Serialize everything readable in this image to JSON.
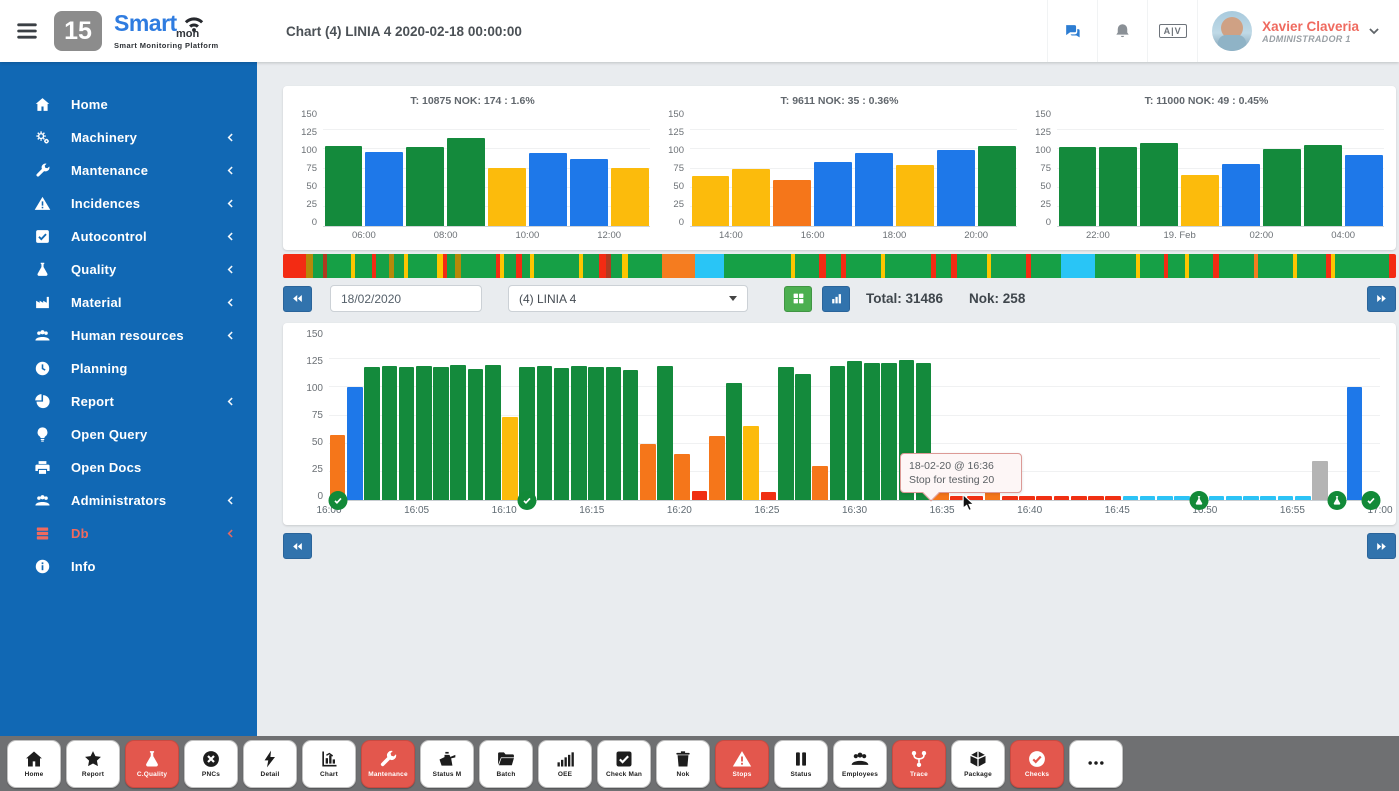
{
  "colors": {
    "green": "#148a3c",
    "blue": "#1e78e9",
    "yellow": "#fcbb0c",
    "orange": "#f5761a",
    "red": "#f03013",
    "cyan": "#2cc3f6",
    "gray": "#b4b4b4",
    "sidebar": "#1168b4",
    "accent_red": "#e3574d",
    "strip_green": "#16a046"
  },
  "header": {
    "title": "Chart (4) LINIA 4 2020-02-18 00:00:00",
    "logo_number": "15",
    "brand": {
      "name_top": "Smart",
      "name_sub": "mon",
      "tagline": "Smart Monitoring Platform"
    },
    "av_badge": "A|V",
    "user": {
      "name": "Xavier Claveria",
      "role": "ADMINISTRADOR 1"
    }
  },
  "sidebar": {
    "items": [
      {
        "label": "Home",
        "icon": "home",
        "expandable": false,
        "accent": false
      },
      {
        "label": "Machinery",
        "icon": "gears",
        "expandable": true,
        "accent": false
      },
      {
        "label": "Mantenance",
        "icon": "wrench",
        "expandable": true,
        "accent": false
      },
      {
        "label": "Incidences",
        "icon": "warning",
        "expandable": true,
        "accent": false
      },
      {
        "label": "Autocontrol",
        "icon": "check-square",
        "expandable": true,
        "accent": false
      },
      {
        "label": "Quality",
        "icon": "flask",
        "expandable": true,
        "accent": false
      },
      {
        "label": "Material",
        "icon": "factory",
        "expandable": true,
        "accent": false
      },
      {
        "label": "Human resources",
        "icon": "users",
        "expandable": true,
        "accent": false
      },
      {
        "label": "Planning",
        "icon": "clock",
        "expandable": false,
        "accent": false
      },
      {
        "label": "Report",
        "icon": "pie",
        "expandable": true,
        "accent": false
      },
      {
        "label": "Open Query",
        "icon": "bulb",
        "expandable": false,
        "accent": false
      },
      {
        "label": "Open Docs",
        "icon": "printer",
        "expandable": false,
        "accent": false
      },
      {
        "label": "Administrators",
        "icon": "users",
        "expandable": true,
        "accent": false
      },
      {
        "label": "Db",
        "icon": "db",
        "expandable": true,
        "accent": true
      },
      {
        "label": "Info",
        "icon": "info",
        "expandable": false,
        "accent": false
      }
    ]
  },
  "controls": {
    "date_value": "18/02/2020",
    "line_selected": "(4) LINIA 4",
    "total_label": "Total: 31486",
    "nok_label": "Nok: 258"
  },
  "strip": {
    "segments": [
      [
        "#f32b13",
        17
      ],
      [
        "#b5890a",
        5
      ],
      [
        "#16a046",
        8
      ],
      [
        "#b03a20",
        3
      ],
      [
        "#16a046",
        18
      ],
      [
        "#fdc500",
        3
      ],
      [
        "#16a046",
        12
      ],
      [
        "#f32b13",
        3
      ],
      [
        "#16a046",
        10
      ],
      [
        "#b5890a",
        4
      ],
      [
        "#16a046",
        7
      ],
      [
        "#fdc500",
        3
      ],
      [
        "#16a046",
        22
      ],
      [
        "#fdc500",
        4
      ],
      [
        "#f32b13",
        3
      ],
      [
        "#16a046",
        6
      ],
      [
        "#b5890a",
        5
      ],
      [
        "#16a046",
        26
      ],
      [
        "#f32b13",
        3
      ],
      [
        "#fdc500",
        3
      ],
      [
        "#16a046",
        9
      ],
      [
        "#f32b13",
        4
      ],
      [
        "#16a046",
        6
      ],
      [
        "#fdc500",
        3
      ],
      [
        "#16a046",
        34
      ],
      [
        "#fdc500",
        3
      ],
      [
        "#16a046",
        12
      ],
      [
        "#f32b13",
        5
      ],
      [
        "#b03a20",
        4
      ],
      [
        "#16a046",
        8
      ],
      [
        "#fdc500",
        4
      ],
      [
        "#16a046",
        26
      ],
      [
        "#f57c1f",
        24
      ],
      [
        "#29c5f6",
        22
      ],
      [
        "#16a046",
        50
      ],
      [
        "#fdc500",
        3
      ],
      [
        "#16a046",
        18
      ],
      [
        "#f32b13",
        5
      ],
      [
        "#16a046",
        11
      ],
      [
        "#f32b13",
        4
      ],
      [
        "#16a046",
        26
      ],
      [
        "#fdc500",
        3
      ],
      [
        "#16a046",
        34
      ],
      [
        "#f32b13",
        4
      ],
      [
        "#16a046",
        11
      ],
      [
        "#f32b13",
        5
      ],
      [
        "#16a046",
        22
      ],
      [
        "#fdc500",
        3
      ],
      [
        "#16a046",
        26
      ],
      [
        "#f32b13",
        4
      ],
      [
        "#16a046",
        22
      ],
      [
        "#29c5f6",
        26
      ],
      [
        "#16a046",
        30
      ],
      [
        "#fdc500",
        3
      ],
      [
        "#16a046",
        18
      ],
      [
        "#f32b13",
        3
      ],
      [
        "#16a046",
        13
      ],
      [
        "#fdc500",
        3
      ],
      [
        "#16a046",
        18
      ],
      [
        "#f32b13",
        4
      ],
      [
        "#16a046",
        26
      ],
      [
        "#f57c1f",
        3
      ],
      [
        "#16a046",
        26
      ],
      [
        "#fdc500",
        3
      ],
      [
        "#16a046",
        22
      ],
      [
        "#f32b13",
        4
      ],
      [
        "#fdc500",
        3
      ],
      [
        "#16a046",
        40
      ],
      [
        "#f32b13",
        5
      ]
    ]
  },
  "chart_data": [
    {
      "type": "bar",
      "title": "T: 10875 NOK: 174 : 1.6%",
      "ylim": [
        0,
        150
      ],
      "yticks": [
        150,
        125,
        100,
        75,
        50,
        25,
        0
      ],
      "x_labels": [
        "06:00",
        "08:00",
        "10:00",
        "12:00"
      ],
      "bars": [
        [
          105,
          "green"
        ],
        [
          97,
          "blue"
        ],
        [
          103,
          "green"
        ],
        [
          115,
          "green"
        ],
        [
          76,
          "yellow"
        ],
        [
          95,
          "blue"
        ],
        [
          88,
          "blue"
        ],
        [
          76,
          "yellow"
        ]
      ]
    },
    {
      "type": "bar",
      "title": "T: 9611 NOK: 35 : 0.36%",
      "ylim": [
        0,
        150
      ],
      "yticks": [
        150,
        125,
        100,
        75,
        50,
        25,
        0
      ],
      "x_labels": [
        "14:00",
        "16:00",
        "18:00",
        "20:00"
      ],
      "bars": [
        [
          65,
          "yellow"
        ],
        [
          74,
          "yellow"
        ],
        [
          60,
          "orange"
        ],
        [
          84,
          "blue"
        ],
        [
          95,
          "blue"
        ],
        [
          79,
          "yellow"
        ],
        [
          99,
          "blue"
        ],
        [
          105,
          "green"
        ]
      ]
    },
    {
      "type": "bar",
      "title": "T: 11000 NOK: 49 : 0.45%",
      "ylim": [
        0,
        150
      ],
      "yticks": [
        150,
        125,
        100,
        75,
        50,
        25,
        0
      ],
      "x_labels": [
        "22:00",
        "19. Feb",
        "02:00",
        "04:00"
      ],
      "bars": [
        [
          103,
          "green"
        ],
        [
          103,
          "green"
        ],
        [
          108,
          "green"
        ],
        [
          66,
          "yellow"
        ],
        [
          81,
          "blue"
        ],
        [
          101,
          "green"
        ],
        [
          106,
          "green"
        ],
        [
          92,
          "blue"
        ]
      ]
    },
    {
      "type": "bar",
      "title": "",
      "ylim": [
        0,
        150
      ],
      "yticks": [
        150,
        125,
        100,
        75,
        50,
        25,
        0
      ],
      "x_labels": [
        "16:00",
        "16:05",
        "16:10",
        "16:15",
        "16:20",
        "16:25",
        "16:30",
        "16:35",
        "16:40",
        "16:45",
        "16:50",
        "16:55",
        "17:00"
      ],
      "bars": [
        [
          58,
          "orange"
        ],
        [
          100,
          "blue"
        ],
        [
          118,
          "green"
        ],
        [
          119,
          "green"
        ],
        [
          118,
          "green"
        ],
        [
          119,
          "green"
        ],
        [
          118,
          "green"
        ],
        [
          120,
          "green"
        ],
        [
          116,
          "green"
        ],
        [
          120,
          "green"
        ],
        [
          74,
          "yellow"
        ],
        [
          118,
          "green"
        ],
        [
          119,
          "green"
        ],
        [
          117,
          "green"
        ],
        [
          119,
          "green"
        ],
        [
          118,
          "green"
        ],
        [
          118,
          "green"
        ],
        [
          115,
          "green"
        ],
        [
          50,
          "orange"
        ],
        [
          119,
          "green"
        ],
        [
          41,
          "orange"
        ],
        [
          8,
          "red"
        ],
        [
          57,
          "orange"
        ],
        [
          104,
          "green"
        ],
        [
          66,
          "yellow"
        ],
        [
          7,
          "red"
        ],
        [
          118,
          "green"
        ],
        [
          112,
          "green"
        ],
        [
          30,
          "orange"
        ],
        [
          119,
          "green"
        ],
        [
          123,
          "green"
        ],
        [
          122,
          "green"
        ],
        [
          122,
          "green"
        ],
        [
          124,
          "green"
        ],
        [
          122,
          "green"
        ],
        [
          10,
          "orange"
        ],
        [
          4,
          "red"
        ],
        [
          4,
          "red"
        ],
        [
          9,
          "orange"
        ],
        [
          4,
          "red"
        ],
        [
          4,
          "red"
        ],
        [
          4,
          "red"
        ],
        [
          4,
          "red"
        ],
        [
          4,
          "red"
        ],
        [
          4,
          "red"
        ],
        [
          4,
          "red"
        ],
        [
          4,
          "cyan"
        ],
        [
          4,
          "cyan"
        ],
        [
          4,
          "cyan"
        ],
        [
          4,
          "cyan"
        ],
        [
          4,
          "cyan"
        ],
        [
          4,
          "cyan"
        ],
        [
          4,
          "cyan"
        ],
        [
          4,
          "cyan"
        ],
        [
          4,
          "cyan"
        ],
        [
          4,
          "cyan"
        ],
        [
          4,
          "cyan"
        ],
        [
          35,
          "gray"
        ],
        [
          4,
          "cyan"
        ],
        [
          100,
          "blue"
        ],
        [
          4,
          "cyan"
        ]
      ],
      "markers": [
        {
          "m": 0,
          "t": "check"
        },
        {
          "m": 11,
          "t": "check"
        },
        {
          "m": 50,
          "t": "flask"
        },
        {
          "m": 58,
          "t": "flask"
        },
        {
          "m": 60,
          "t": "check"
        }
      ]
    }
  ],
  "tooltip": {
    "line1": "18-02-20 @ 16:36",
    "line2": "Stop for testing 20"
  },
  "toolbar": {
    "items": [
      {
        "label": "Home",
        "icon": "home",
        "red": false
      },
      {
        "label": "Report",
        "icon": "star",
        "red": false
      },
      {
        "label": "C.Quality",
        "icon": "flask",
        "red": true
      },
      {
        "label": "PNCs",
        "icon": "x-circle",
        "red": false
      },
      {
        "label": "Detail",
        "icon": "bolt",
        "red": false
      },
      {
        "label": "Chart",
        "icon": "chart-box",
        "red": false
      },
      {
        "label": "Mantenance",
        "icon": "wrench",
        "red": true
      },
      {
        "label": "Status M",
        "icon": "oil",
        "red": false
      },
      {
        "label": "Batch",
        "icon": "folder",
        "red": false
      },
      {
        "label": "OEE",
        "icon": "signal",
        "red": false
      },
      {
        "label": "Check Man",
        "icon": "check-square",
        "red": false
      },
      {
        "label": "Nok",
        "icon": "trash",
        "red": false
      },
      {
        "label": "Stops",
        "icon": "warning",
        "red": true
      },
      {
        "label": "Status",
        "icon": "pause",
        "red": false
      },
      {
        "label": "Employees",
        "icon": "users",
        "red": false
      },
      {
        "label": "Trace",
        "icon": "branch",
        "red": true
      },
      {
        "label": "Package",
        "icon": "cube",
        "red": false
      },
      {
        "label": "Checks",
        "icon": "check-circle",
        "red": true
      },
      {
        "label": "",
        "icon": "dots",
        "red": false
      }
    ]
  }
}
